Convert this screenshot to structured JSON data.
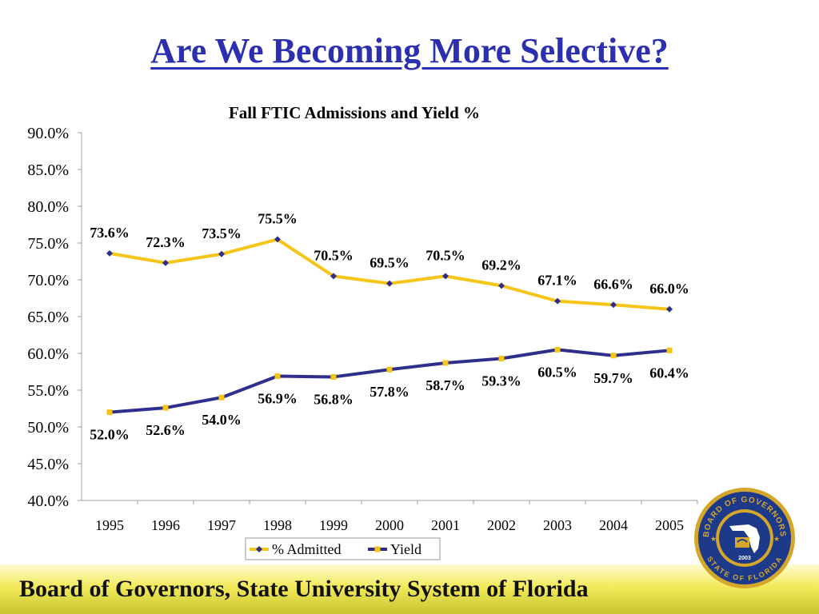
{
  "slide": {
    "title": "Are We Becoming More Selective?",
    "footer": "Board of Governors, State University System of Florida"
  },
  "seal": {
    "top_text": "BOARD OF GOVERNORS",
    "bottom_text": "STATE OF FLORIDA",
    "year": "2003",
    "icon": "florida-state-seal-icon"
  },
  "colors": {
    "title": "#2b2fb0",
    "admitted_line": "#f5c518",
    "yield_line": "#2e2f8c",
    "marker_admitted": "#2e2f8c",
    "marker_yield": "#f5c518",
    "seal_ring": "#1d3a8a",
    "seal_gold": "#d4a62a"
  },
  "chart_data": {
    "type": "line",
    "title": "Fall FTIC Admissions and Yield %",
    "categories": [
      "1995",
      "1996",
      "1997",
      "1998",
      "1999",
      "2000",
      "2001",
      "2002",
      "2003",
      "2004",
      "2005"
    ],
    "series": [
      {
        "name": "% Admitted",
        "values": [
          73.6,
          72.3,
          73.5,
          75.5,
          70.5,
          69.5,
          70.5,
          69.2,
          67.1,
          66.6,
          66.0
        ],
        "labels": [
          "73.6%",
          "72.3%",
          "73.5%",
          "75.5%",
          "70.5%",
          "69.5%",
          "70.5%",
          "69.2%",
          "67.1%",
          "66.6%",
          "66.0%"
        ]
      },
      {
        "name": "Yield",
        "values": [
          52.0,
          52.6,
          54.0,
          56.9,
          56.8,
          57.8,
          58.7,
          59.3,
          60.5,
          59.7,
          60.4
        ],
        "labels": [
          "52.0%",
          "52.6%",
          "54.0%",
          "56.9%",
          "56.8%",
          "57.8%",
          "58.7%",
          "59.3%",
          "60.5%",
          "59.7%",
          "60.4%"
        ]
      }
    ],
    "ylim": [
      40,
      90
    ],
    "yticks": [
      "40.0%",
      "45.0%",
      "50.0%",
      "55.0%",
      "60.0%",
      "65.0%",
      "70.0%",
      "75.0%",
      "80.0%",
      "85.0%",
      "90.0%"
    ],
    "xlabel": "",
    "ylabel": "",
    "grid": false,
    "legend": "bottom"
  }
}
